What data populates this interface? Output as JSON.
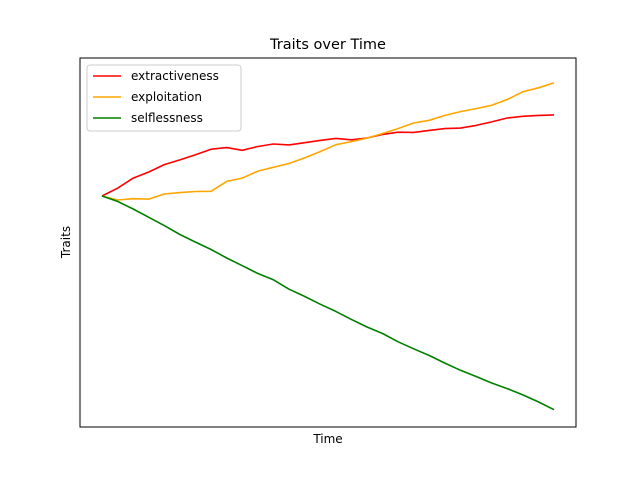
{
  "chart_data": {
    "type": "line",
    "title": "Traits over Time",
    "xlabel": "Time",
    "ylabel": "Traits",
    "x_ticks_visible": false,
    "y_ticks_visible": false,
    "grid": false,
    "legend_position": "upper-left",
    "series": [
      {
        "name": "extractiveness",
        "color": "#ff0000",
        "values": [
          0.0,
          0.035,
          0.08,
          0.107,
          0.14,
          0.161,
          0.184,
          0.209,
          0.216,
          0.204,
          0.221,
          0.232,
          0.228,
          0.238,
          0.248,
          0.257,
          0.251,
          0.259,
          0.275,
          0.285,
          0.284,
          0.293,
          0.301,
          0.303,
          0.315,
          0.331,
          0.348,
          0.356,
          0.36,
          0.362
        ]
      },
      {
        "name": "exploitation",
        "color": "#ffa500",
        "values": [
          0.0,
          -0.018,
          -0.012,
          -0.014,
          0.009,
          0.015,
          0.02,
          0.021,
          0.065,
          0.08,
          0.111,
          0.128,
          0.145,
          0.17,
          0.198,
          0.229,
          0.243,
          0.258,
          0.279,
          0.301,
          0.326,
          0.338,
          0.36,
          0.377,
          0.39,
          0.405,
          0.431,
          0.465,
          0.483,
          0.505
        ]
      },
      {
        "name": "selflessness",
        "color": "#008000",
        "values": [
          0.0,
          -0.024,
          -0.058,
          -0.095,
          -0.132,
          -0.172,
          -0.206,
          -0.239,
          -0.277,
          -0.311,
          -0.346,
          -0.374,
          -0.416,
          -0.448,
          -0.483,
          -0.515,
          -0.551,
          -0.585,
          -0.614,
          -0.651,
          -0.682,
          -0.712,
          -0.746,
          -0.778,
          -0.806,
          -0.835,
          -0.86,
          -0.888,
          -0.919,
          -0.954
        ]
      }
    ]
  }
}
